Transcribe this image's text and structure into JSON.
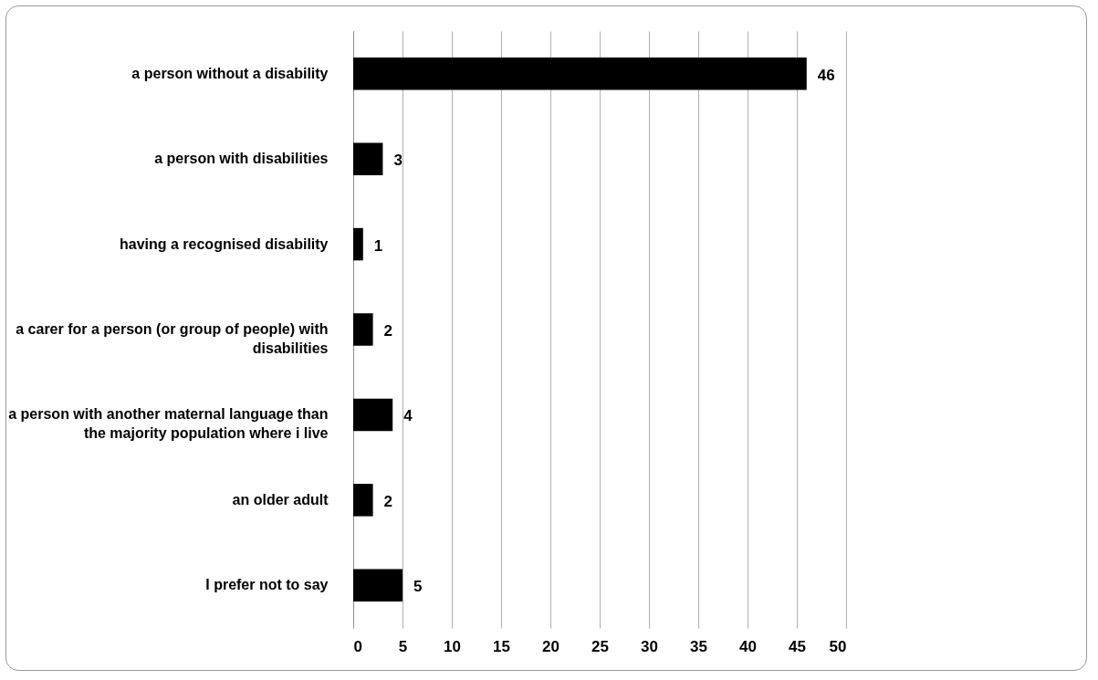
{
  "chart_data": {
    "type": "bar",
    "orientation": "horizontal",
    "categories": [
      "a person without a disability",
      "a person with disabilities",
      "having a recognised disability",
      "a carer for a person (or group of people) with disabilities",
      "a person with another maternal language than the majority population where i live",
      "an older adult",
      "I prefer not to say"
    ],
    "values": [
      46,
      3,
      1,
      2,
      4,
      2,
      5
    ],
    "color": "#000000",
    "xlim": [
      0,
      50
    ],
    "xticks": [
      0,
      5,
      10,
      15,
      20,
      25,
      30,
      35,
      40,
      45,
      50
    ],
    "grid": "x",
    "data_labels": true
  }
}
